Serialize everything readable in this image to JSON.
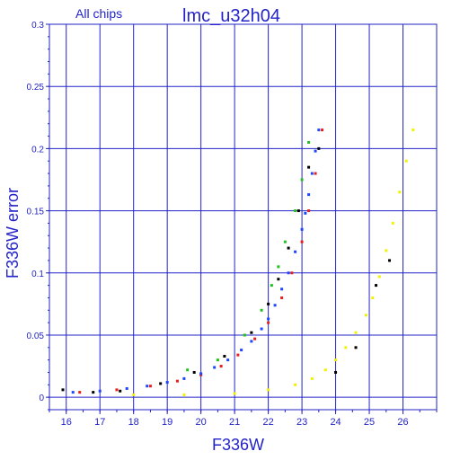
{
  "chart_data": {
    "type": "scatter",
    "title": "lmc_u32h04",
    "subtitle": "All chips",
    "xlabel": "F336W",
    "ylabel": "F336W error",
    "xlim": [
      15.5,
      27.0
    ],
    "ylim": [
      -0.01,
      0.3
    ],
    "xticks": [
      16,
      17,
      18,
      19,
      20,
      21,
      22,
      23,
      24,
      25,
      26
    ],
    "yticks": [
      0,
      0.05,
      0.1,
      0.15,
      0.2,
      0.25,
      0.3
    ],
    "ytick_labels": [
      "0",
      "0.05",
      "0.1",
      "0.15",
      "0.2",
      "0.25",
      "0.3"
    ],
    "grid": true,
    "colors": {
      "axes": "#2323c8",
      "grid": "#2323c8",
      "blue": "#1e46ff",
      "red": "#e61e1e",
      "green": "#20c020",
      "black": "#000000",
      "yellow": "#f2f200"
    },
    "series": [
      {
        "color": "blue",
        "x": [
          16.2,
          17.0,
          17.8,
          18.4,
          19.0,
          19.5,
          20.0,
          20.4,
          20.8,
          21.2,
          21.5,
          21.8,
          22.0,
          22.2,
          22.4,
          22.6,
          22.8,
          23.0,
          23.1,
          23.2,
          23.3,
          23.4,
          23.5
        ],
        "y": [
          0.004,
          0.005,
          0.007,
          0.009,
          0.012,
          0.015,
          0.019,
          0.024,
          0.03,
          0.038,
          0.045,
          0.055,
          0.063,
          0.074,
          0.087,
          0.1,
          0.117,
          0.135,
          0.148,
          0.163,
          0.18,
          0.198,
          0.215
        ]
      },
      {
        "color": "red",
        "x": [
          16.4,
          17.5,
          18.5,
          19.3,
          20.0,
          20.6,
          21.1,
          21.6,
          22.0,
          22.4,
          22.7,
          23.0,
          23.2,
          23.4,
          23.6
        ],
        "y": [
          0.004,
          0.006,
          0.009,
          0.013,
          0.018,
          0.025,
          0.034,
          0.047,
          0.06,
          0.08,
          0.1,
          0.125,
          0.15,
          0.18,
          0.215
        ]
      },
      {
        "color": "green",
        "x": [
          19.6,
          20.5,
          21.3,
          21.8,
          22.1,
          22.3,
          22.5,
          22.8,
          23.0,
          23.2
        ],
        "y": [
          0.022,
          0.03,
          0.05,
          0.07,
          0.09,
          0.105,
          0.125,
          0.15,
          0.175,
          0.205
        ]
      },
      {
        "color": "black",
        "x": [
          15.9,
          16.8,
          17.6,
          18.8,
          19.8,
          20.7,
          21.5,
          22.0,
          22.3,
          22.6,
          22.9,
          23.2,
          23.5,
          24.0,
          24.6,
          25.2,
          25.6
        ],
        "y": [
          0.006,
          0.004,
          0.005,
          0.011,
          0.02,
          0.033,
          0.052,
          0.075,
          0.095,
          0.12,
          0.15,
          0.185,
          0.2,
          0.02,
          0.04,
          0.09,
          0.11
        ]
      },
      {
        "color": "yellow",
        "x": [
          18.0,
          19.5,
          21.0,
          22.0,
          22.8,
          23.3,
          23.7,
          24.0,
          24.3,
          24.6,
          24.9,
          25.1,
          25.3,
          25.5,
          25.7,
          25.9,
          26.1,
          26.3
        ],
        "y": [
          0.002,
          0.002,
          0.003,
          0.006,
          0.01,
          0.015,
          0.022,
          0.03,
          0.04,
          0.052,
          0.066,
          0.08,
          0.097,
          0.118,
          0.14,
          0.165,
          0.19,
          0.215
        ]
      }
    ]
  }
}
